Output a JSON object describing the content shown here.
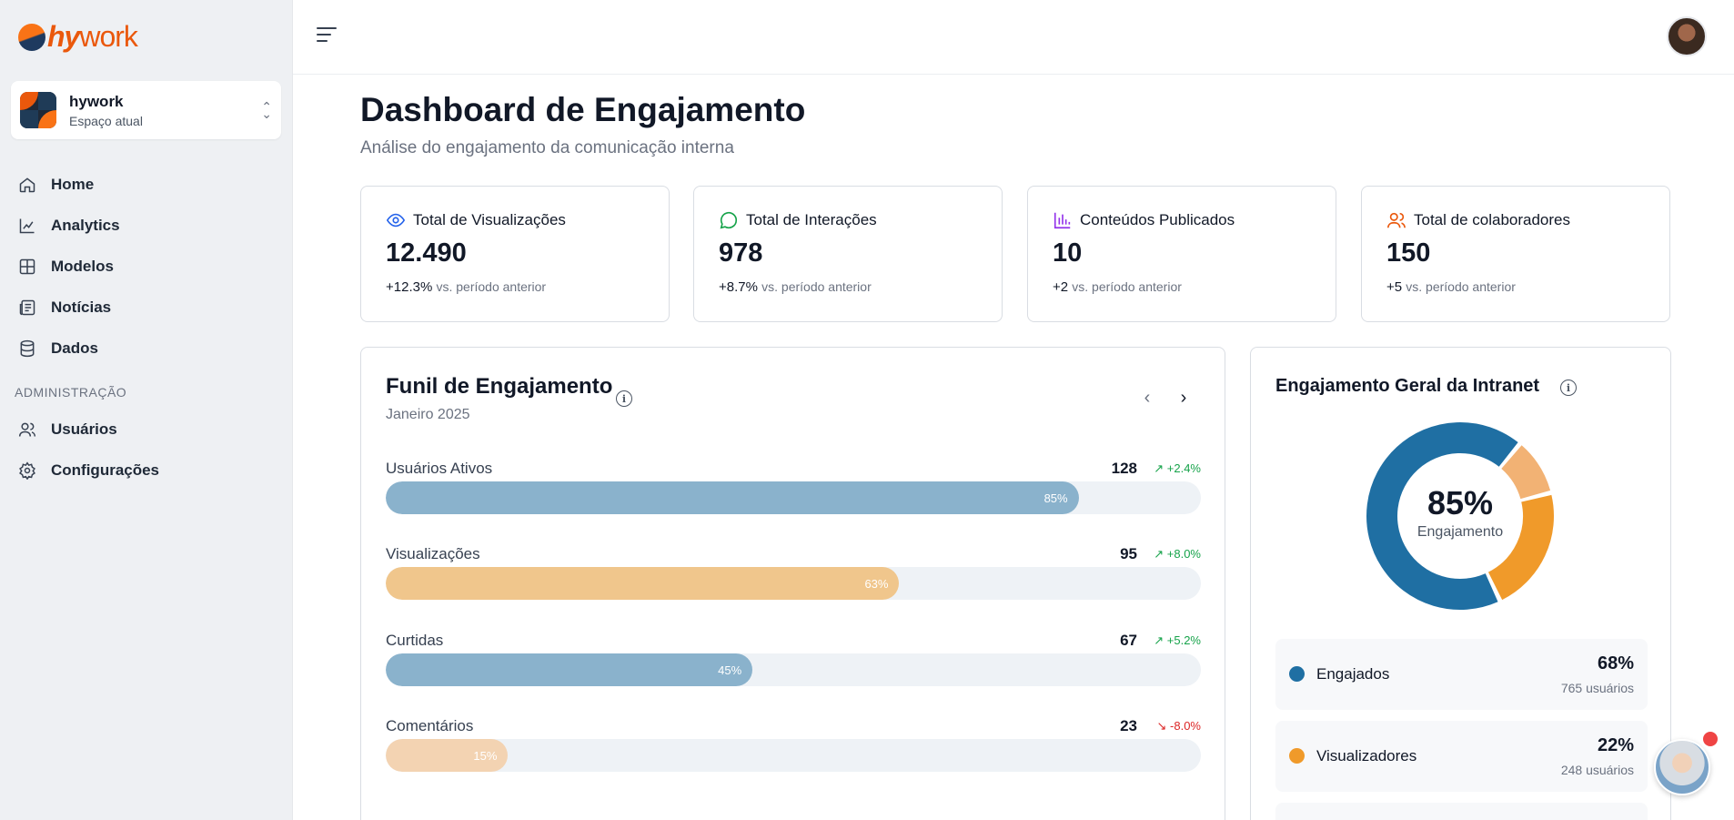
{
  "brand": {
    "logo_prefix": "hy",
    "logo_suffix": "work"
  },
  "space": {
    "name": "hywork",
    "subtitle": "Espaço atual"
  },
  "nav": {
    "items": [
      {
        "label": "Home",
        "icon": "home-icon"
      },
      {
        "label": "Analytics",
        "icon": "chart-icon"
      },
      {
        "label": "Modelos",
        "icon": "grid-icon"
      },
      {
        "label": "Notícias",
        "icon": "newspaper-icon"
      },
      {
        "label": "Dados",
        "icon": "database-icon"
      }
    ],
    "section_label": "ADMINISTRAÇÃO",
    "admin_items": [
      {
        "label": "Usuários",
        "icon": "users-icon"
      },
      {
        "label": "Configurações",
        "icon": "gear-icon"
      }
    ]
  },
  "page": {
    "title": "Dashboard de Engajamento",
    "subtitle": "Análise do engajamento da comunicação interna"
  },
  "stats": [
    {
      "label": "Total de Visualizações",
      "value": "12.490",
      "delta": "+12.3%",
      "vs": "vs. período anterior",
      "icon": "eye-icon",
      "color": "#2563eb"
    },
    {
      "label": "Total de Interações",
      "value": "978",
      "delta": "+8.7%",
      "vs": "vs. período anterior",
      "icon": "message-circle-icon",
      "color": "#16a34a"
    },
    {
      "label": "Conteúdos Publicados",
      "value": "10",
      "delta": "+2",
      "vs": "vs. período anterior",
      "icon": "bar-chart-icon",
      "color": "#9333ea"
    },
    {
      "label": "Total de colaboradores",
      "value": "150",
      "delta": "+5",
      "vs": "vs. período anterior",
      "icon": "users-icon",
      "color": "#ea580c"
    }
  ],
  "funnel": {
    "title": "Funil de Engajamento",
    "period": "Janeiro 2025",
    "rows": [
      {
        "label": "Usuários Ativos",
        "count": "128",
        "trend": "+2.4%",
        "direction": "up",
        "percent": 85,
        "percent_label": "85%",
        "color": "#8ab2cc"
      },
      {
        "label": "Visualizações",
        "count": "95",
        "trend": "+8.0%",
        "direction": "up",
        "percent": 63,
        "percent_label": "63%",
        "color": "#f0c68c"
      },
      {
        "label": "Curtidas",
        "count": "67",
        "trend": "+5.2%",
        "direction": "up",
        "percent": 45,
        "percent_label": "45%",
        "color": "#8ab2cc"
      },
      {
        "label": "Comentários",
        "count": "23",
        "trend": "-8.0%",
        "direction": "down",
        "percent": 15,
        "percent_label": "15%",
        "color": "#f3d3b2"
      }
    ]
  },
  "engagement": {
    "title": "Engajamento Geral da Intranet",
    "center_value": "85%",
    "center_label": "Engajamento",
    "legend": [
      {
        "name": "Engajados",
        "pct": "68%",
        "count": "765 usuários",
        "color": "#1f6fa3"
      },
      {
        "name": "Visualizadores",
        "pct": "22%",
        "count": "248 usuários",
        "color": "#f09a2a"
      }
    ]
  },
  "chart_data": {
    "type": "pie",
    "title": "Engajamento Geral da Intranet",
    "categories": [
      "Engajados",
      "Visualizadores"
    ],
    "values": [
      68,
      22
    ],
    "note_remaining": 10,
    "colors": [
      "#1f6fa3",
      "#f09a2a",
      "#f2b274"
    ]
  }
}
